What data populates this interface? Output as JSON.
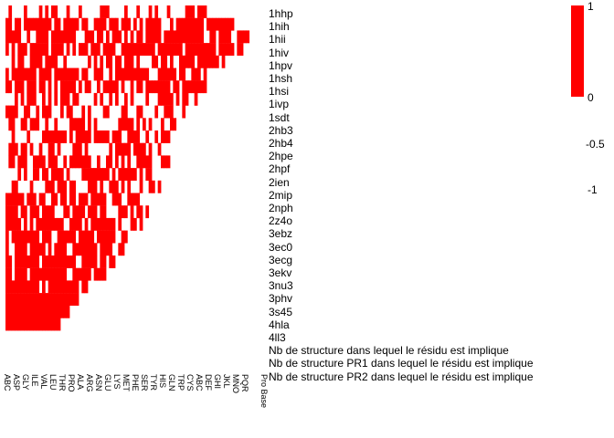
{
  "chart_data": {
    "type": "heatmap",
    "title": "",
    "xlabel": "",
    "ylabel": "",
    "color_low": "#ffffff",
    "color_high": "#ff0000",
    "legend": {
      "ticks": [
        "1",
        "0",
        "-0.5",
        "-1"
      ],
      "placement": "top-right"
    },
    "rows": [
      "1hhp",
      "1hih",
      "1hii",
      "1hiv",
      "1hpv",
      "1hsh",
      "1hsi",
      "1ivp",
      "1sdt",
      "2hb3",
      "2hb4",
      "2hpe",
      "2hpf",
      "2ien",
      "2mip",
      "2nph",
      "2z4o",
      "3ebz",
      "3ec0",
      "3ecg",
      "3ekv",
      "3nu3",
      "3phv",
      "3s45",
      "4hla",
      "4ll3",
      "Nb de structure dans lequel le résidu est implique",
      "Nb de structure PR1 dans lequel le résidu est implique",
      "Nb de structure PR2 dans lequel le résidu est implique"
    ],
    "filled_cols_per_row": [
      22,
      25,
      27,
      26,
      24,
      23,
      22,
      21,
      20,
      19,
      18,
      17,
      18,
      16,
      17,
      15,
      16,
      15,
      14,
      13,
      12,
      11,
      9,
      8,
      7,
      6,
      0,
      0,
      0
    ],
    "density_per_row": [
      0.35,
      0.75,
      0.7,
      0.8,
      0.6,
      0.75,
      0.7,
      0.55,
      0.5,
      0.45,
      0.55,
      0.5,
      0.55,
      0.6,
      0.6,
      0.65,
      0.6,
      0.7,
      0.8,
      0.75,
      0.8,
      0.85,
      0.8,
      0.95,
      1.0,
      1.0,
      0,
      0,
      0
    ],
    "column_count": 28,
    "column_labels": [
      "ABC",
      "ASP",
      "GLY",
      "ILE",
      "VAL",
      "LEU",
      "THR",
      "PRO",
      "ALA",
      "ARG",
      "ASN",
      "GLU",
      "LYS",
      "MET",
      "PHE",
      "SER",
      "TYR",
      "HIS",
      "GLN",
      "TRP",
      "CYS",
      "ABC",
      "DEF",
      "GHI",
      "JKL",
      "MNO",
      "PQR",
      "Pro Base"
    ]
  }
}
